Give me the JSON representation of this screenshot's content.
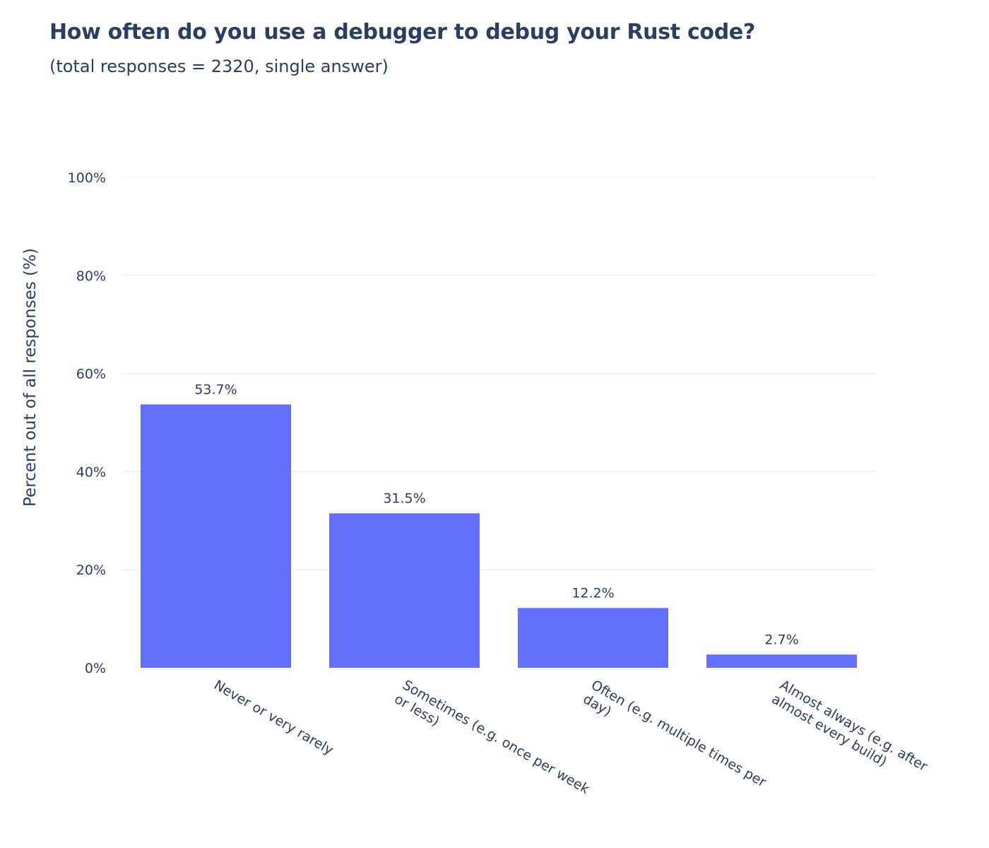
{
  "chart_data": {
    "type": "bar",
    "title": "How often do you use a debugger to debug your Rust code?",
    "subtitle": "(total responses = 2320, single answer)",
    "xlabel": "",
    "ylabel": "Percent out of all responses (%)",
    "ylim": [
      0,
      100
    ],
    "yticks": [
      0,
      20,
      40,
      60,
      80,
      100
    ],
    "ytick_labels": [
      "0%",
      "20%",
      "40%",
      "60%",
      "80%",
      "100%"
    ],
    "grid": true,
    "categories": [
      [
        "Never or very rarely"
      ],
      [
        "Sometimes (e.g. once per week",
        "or less)"
      ],
      [
        "Often (e.g. multiple times per",
        "day)"
      ],
      [
        "Almost always (e.g. after",
        "almost every build)"
      ]
    ],
    "values": [
      53.7,
      31.5,
      12.2,
      2.7
    ],
    "data_labels": [
      "53.7%",
      "31.5%",
      "12.2%",
      "2.7%"
    ],
    "bar_color": "#636efa",
    "grid_color": "#e5ecf6",
    "text_color": "#2a3f5f"
  }
}
